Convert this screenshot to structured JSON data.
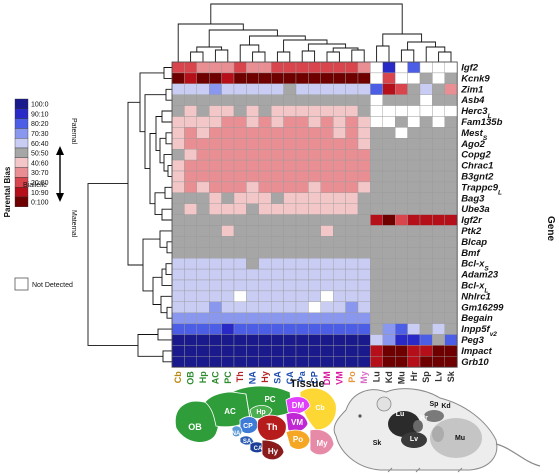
{
  "chart_data": {
    "type": "heatmap",
    "xlabel": "Tissue",
    "ylabel": "Gene",
    "legend": {
      "title": "Parental Bias",
      "bins": [
        "100:0",
        "90:10",
        "80:20",
        "70:30",
        "60:40",
        "50:50",
        "40:60",
        "30:70",
        "20:80",
        "10:90",
        "0:100"
      ],
      "colors": [
        "#1a1a8c",
        "#2929c8",
        "#4d5ee6",
        "#8a97ee",
        "#c9cdf4",
        "#a6a6a6",
        "#f3c6c8",
        "#e98f94",
        "#d9454d",
        "#b5101a",
        "#6e0000"
      ],
      "paternal_label": "Paternal",
      "maternal_label": "Maternal",
      "biallelic_label": "Biallelic",
      "not_detected_label": "Not Detected",
      "not_detected_color": "#ffffff"
    },
    "tissues": [
      {
        "name": "Cb",
        "color": "#b8860b"
      },
      {
        "name": "OB",
        "color": "#2e8b2e"
      },
      {
        "name": "Hp",
        "color": "#2e8b2e"
      },
      {
        "name": "AC",
        "color": "#2e8b2e"
      },
      {
        "name": "PC",
        "color": "#2e8b2e"
      },
      {
        "name": "Th",
        "color": "#b22222"
      },
      {
        "name": "NA",
        "color": "#1e4fb0"
      },
      {
        "name": "Hy",
        "color": "#b22222"
      },
      {
        "name": "SA",
        "color": "#1e4fb0"
      },
      {
        "name": "CA",
        "color": "#1e4fb0"
      },
      {
        "name": "Pa",
        "color": "#1e4fb0"
      },
      {
        "name": "CP",
        "color": "#1e4fb0"
      },
      {
        "name": "DM",
        "color": "#d81ba0"
      },
      {
        "name": "VM",
        "color": "#d81ba0"
      },
      {
        "name": "Po",
        "color": "#e8923a"
      },
      {
        "name": "My",
        "color": "#d870c8"
      },
      {
        "name": "Lu",
        "color": "#333333"
      },
      {
        "name": "Kd",
        "color": "#333333"
      },
      {
        "name": "Mu",
        "color": "#333333"
      },
      {
        "name": "Hr",
        "color": "#333333"
      },
      {
        "name": "Sp",
        "color": "#333333"
      },
      {
        "name": "Lv",
        "color": "#333333"
      },
      {
        "name": "Sk",
        "color": "#333333"
      }
    ],
    "genes": [
      "Igf2",
      "Kcnk9",
      "Zim1",
      "Asb4",
      "Herc3L",
      "Fam135b",
      "Mest_S",
      "Ago2",
      "Copg2",
      "Chrac1",
      "B3gnt2",
      "Trappc9L",
      "Bag3",
      "Ube3a",
      "Igf2r",
      "Ptk2",
      "Blcap",
      "Bmf",
      "Bcl-x_S",
      "Adam23",
      "Bcl-x_L",
      "Nhlrc1",
      "Gm16299",
      "Begain",
      "Inpp5f_v2",
      "Peg3",
      "Impact",
      "Grb10"
    ],
    "gene_display": [
      {
        "base": "Igf2",
        "sub": ""
      },
      {
        "base": "Kcnk9",
        "sub": ""
      },
      {
        "base": "Zim1",
        "sub": ""
      },
      {
        "base": "Asb4",
        "sub": ""
      },
      {
        "base": "Herc3",
        "sub": "L"
      },
      {
        "base": "Fam135b",
        "sub": ""
      },
      {
        "base": "Mest",
        "sub": "S"
      },
      {
        "base": "Ago2",
        "sub": ""
      },
      {
        "base": "Copg2",
        "sub": ""
      },
      {
        "base": "Chrac1",
        "sub": ""
      },
      {
        "base": "B3gnt2",
        "sub": ""
      },
      {
        "base": "Trappc9",
        "sub": "L"
      },
      {
        "base": "Bag3",
        "sub": ""
      },
      {
        "base": "Ube3a",
        "sub": ""
      },
      {
        "base": "Igf2r",
        "sub": ""
      },
      {
        "base": "Ptk2",
        "sub": ""
      },
      {
        "base": "Blcap",
        "sub": ""
      },
      {
        "base": "Bmf",
        "sub": ""
      },
      {
        "base": "Bcl-x",
        "sub": "S"
      },
      {
        "base": "Adam23",
        "sub": ""
      },
      {
        "base": "Bcl-x",
        "sub": "L"
      },
      {
        "base": "Nhlrc1",
        "sub": ""
      },
      {
        "base": "Gm16299",
        "sub": ""
      },
      {
        "base": "Begain",
        "sub": ""
      },
      {
        "base": "Inpp5f",
        "sub": "v2"
      },
      {
        "base": "Peg3",
        "sub": ""
      },
      {
        "base": "Impact",
        "sub": ""
      },
      {
        "base": "Grb10",
        "sub": ""
      }
    ],
    "values_note": "Each cell is the legend bin index 0-10 (0 = 100:0 paternal, 5 = 50:50 biallelic, 10 = 0:100 maternal); null = Not Detected. Rows follow genes, columns follow tissues.",
    "values": [
      [
        8,
        8,
        7,
        7,
        7,
        8,
        7,
        7,
        8,
        8,
        8,
        8,
        8,
        8,
        8,
        7,
        null,
        1,
        null,
        2,
        null,
        null,
        null
      ],
      [
        10,
        9,
        10,
        10,
        9,
        10,
        10,
        10,
        10,
        10,
        10,
        10,
        10,
        10,
        10,
        10,
        null,
        8,
        null,
        null,
        5,
        null,
        5
      ],
      [
        4,
        4,
        4,
        3,
        4,
        4,
        4,
        4,
        4,
        5,
        4,
        4,
        4,
        4,
        4,
        4,
        2,
        9,
        8,
        5,
        4,
        5,
        7
      ],
      [
        5,
        5,
        5,
        5,
        5,
        5,
        5,
        5,
        5,
        5,
        5,
        5,
        5,
        5,
        5,
        5,
        null,
        5,
        5,
        5,
        null,
        5,
        5
      ],
      [
        5,
        6,
        5,
        6,
        6,
        5,
        6,
        5,
        6,
        6,
        6,
        6,
        6,
        6,
        6,
        5,
        null,
        null,
        null,
        null,
        null,
        null,
        null
      ],
      [
        6,
        6,
        6,
        6,
        7,
        7,
        6,
        7,
        6,
        7,
        7,
        6,
        7,
        6,
        7,
        6,
        null,
        null,
        5,
        null,
        5,
        null,
        5
      ],
      [
        6,
        7,
        6,
        7,
        7,
        7,
        7,
        7,
        7,
        7,
        7,
        7,
        7,
        6,
        7,
        6,
        5,
        5,
        null,
        5,
        5,
        5,
        5
      ],
      [
        6,
        7,
        7,
        7,
        7,
        7,
        7,
        7,
        7,
        7,
        7,
        7,
        7,
        7,
        7,
        6,
        5,
        5,
        5,
        5,
        5,
        5,
        5
      ],
      [
        5,
        6,
        7,
        7,
        7,
        7,
        7,
        7,
        7,
        7,
        7,
        7,
        7,
        7,
        7,
        7,
        5,
        5,
        5,
        5,
        5,
        5,
        5
      ],
      [
        6,
        7,
        7,
        7,
        7,
        7,
        7,
        7,
        7,
        7,
        7,
        7,
        7,
        7,
        7,
        7,
        5,
        5,
        5,
        5,
        5,
        5,
        5
      ],
      [
        6,
        7,
        7,
        7,
        7,
        7,
        7,
        7,
        7,
        7,
        7,
        7,
        7,
        7,
        7,
        7,
        5,
        5,
        5,
        5,
        5,
        5,
        5
      ],
      [
        6,
        7,
        6,
        7,
        7,
        7,
        6,
        7,
        7,
        7,
        7,
        6,
        7,
        7,
        7,
        6,
        5,
        5,
        5,
        5,
        5,
        5,
        5
      ],
      [
        5,
        5,
        5,
        6,
        5,
        6,
        6,
        6,
        5,
        6,
        6,
        6,
        6,
        6,
        6,
        5,
        5,
        5,
        5,
        5,
        5,
        5,
        5
      ],
      [
        5,
        6,
        5,
        6,
        6,
        6,
        5,
        6,
        6,
        6,
        6,
        6,
        6,
        6,
        6,
        5,
        5,
        5,
        5,
        5,
        5,
        5,
        5
      ],
      [
        5,
        5,
        5,
        5,
        5,
        5,
        5,
        5,
        5,
        5,
        5,
        5,
        5,
        5,
        5,
        5,
        9,
        10,
        8,
        9,
        9,
        9,
        9
      ],
      [
        5,
        5,
        5,
        5,
        6,
        5,
        5,
        5,
        5,
        5,
        5,
        5,
        6,
        5,
        5,
        5,
        5,
        5,
        5,
        5,
        5,
        5,
        5
      ],
      [
        5,
        5,
        5,
        5,
        5,
        5,
        5,
        5,
        5,
        5,
        5,
        5,
        5,
        5,
        5,
        5,
        5,
        5,
        5,
        5,
        5,
        5,
        5
      ],
      [
        5,
        5,
        5,
        5,
        5,
        5,
        5,
        5,
        5,
        5,
        5,
        5,
        5,
        5,
        5,
        5,
        5,
        5,
        5,
        5,
        5,
        5,
        5
      ],
      [
        4,
        4,
        4,
        4,
        4,
        4,
        5,
        4,
        4,
        4,
        4,
        4,
        4,
        4,
        4,
        4,
        5,
        5,
        5,
        5,
        5,
        5,
        5
      ],
      [
        4,
        4,
        4,
        4,
        4,
        4,
        4,
        4,
        4,
        4,
        4,
        4,
        4,
        4,
        4,
        4,
        5,
        5,
        5,
        5,
        5,
        5,
        5
      ],
      [
        4,
        4,
        4,
        4,
        4,
        4,
        4,
        4,
        4,
        4,
        4,
        4,
        4,
        4,
        4,
        4,
        5,
        5,
        5,
        5,
        5,
        5,
        5
      ],
      [
        4,
        4,
        4,
        4,
        4,
        null,
        4,
        4,
        4,
        4,
        4,
        4,
        null,
        4,
        4,
        4,
        5,
        5,
        5,
        5,
        5,
        5,
        5
      ],
      [
        4,
        4,
        4,
        3,
        4,
        4,
        4,
        4,
        4,
        4,
        4,
        null,
        4,
        4,
        3,
        4,
        5,
        5,
        5,
        5,
        5,
        5,
        5
      ],
      [
        3,
        3,
        3,
        3,
        3,
        3,
        3,
        3,
        3,
        3,
        3,
        3,
        3,
        3,
        3,
        3,
        5,
        5,
        5,
        5,
        5,
        5,
        5
      ],
      [
        2,
        2,
        2,
        2,
        1,
        2,
        2,
        2,
        2,
        2,
        2,
        2,
        2,
        2,
        2,
        2,
        5,
        3,
        2,
        4,
        5,
        4,
        5
      ],
      [
        0,
        0,
        0,
        0,
        0,
        0,
        0,
        0,
        0,
        0,
        0,
        0,
        0,
        0,
        0,
        0,
        4,
        3,
        1,
        1,
        2,
        5,
        2
      ],
      [
        0,
        0,
        0,
        0,
        0,
        0,
        0,
        0,
        0,
        0,
        0,
        0,
        0,
        0,
        0,
        0,
        9,
        10,
        10,
        9,
        9,
        10,
        10
      ],
      [
        0,
        0,
        0,
        0,
        0,
        0,
        0,
        0,
        0,
        0,
        0,
        0,
        0,
        0,
        0,
        0,
        9,
        10,
        10,
        9,
        10,
        10,
        10
      ]
    ]
  },
  "brain_regions": [
    {
      "label": "AC",
      "color": "#2f9e3a"
    },
    {
      "label": "PC",
      "color": "#2f9e3a"
    },
    {
      "label": "OB",
      "color": "#2f9e3a"
    },
    {
      "label": "Hp",
      "color": "#4caf50"
    },
    {
      "label": "CP",
      "color": "#3e7bd6"
    },
    {
      "label": "NA",
      "color": "#5b9bd5"
    },
    {
      "label": "SA",
      "color": "#2e5fb5"
    },
    {
      "label": "CA",
      "color": "#1e3f99"
    },
    {
      "label": "Th",
      "color": "#b71c1c"
    },
    {
      "label": "Hy",
      "color": "#8b1a1a"
    },
    {
      "label": "DM",
      "color": "#e040fb"
    },
    {
      "label": "VM",
      "color": "#c026d3"
    },
    {
      "label": "Cb",
      "color": "#fdd835"
    },
    {
      "label": "Po",
      "color": "#f5a623"
    },
    {
      "label": "My",
      "color": "#e68aa8"
    }
  ],
  "mouse_labels": [
    {
      "label": "Lu"
    },
    {
      "label": "Hr"
    },
    {
      "label": "Sp"
    },
    {
      "label": "Lv"
    },
    {
      "label": "Kd"
    },
    {
      "label": "Sk"
    },
    {
      "label": "Mu"
    }
  ]
}
